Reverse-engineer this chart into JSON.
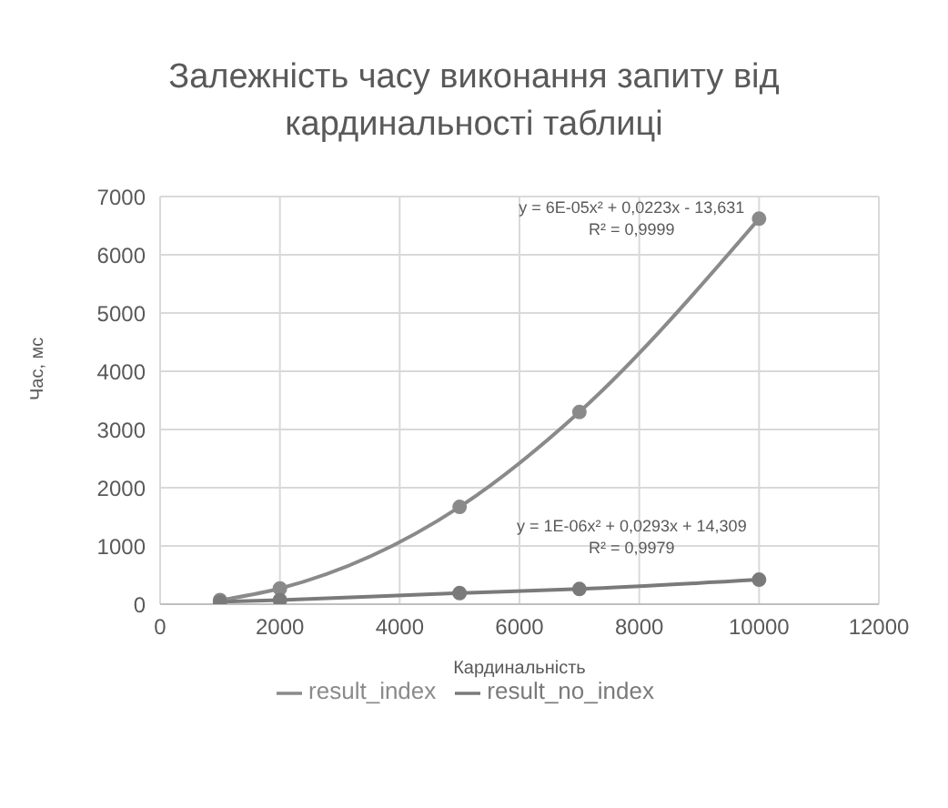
{
  "chart_data": {
    "type": "line",
    "title": "Залежність часу виконання запиту від кардинальності таблиці",
    "xlabel": "Кардинальність",
    "ylabel": "Час, мс",
    "x": [
      1000,
      2000,
      5000,
      7000,
      10000
    ],
    "series": [
      {
        "name": "result_index",
        "color": "#8a8a8a",
        "values": [
          70,
          270,
          1670,
          3300,
          6620
        ]
      },
      {
        "name": "result_no_index",
        "color": "#7a7a7a",
        "values": [
          40,
          70,
          190,
          260,
          420
        ]
      }
    ],
    "xlim": [
      0,
      12000
    ],
    "xticks": [
      0,
      2000,
      4000,
      6000,
      8000,
      10000,
      12000
    ],
    "ylim": [
      0,
      7000
    ],
    "yticks": [
      0,
      1000,
      2000,
      3000,
      4000,
      5000,
      6000,
      7000
    ],
    "grid": true,
    "legend": "bottom",
    "marker": "circle",
    "line_style": "solid",
    "annotations": [
      "y = 6E-05x² + 0,0223x - 13,631\nR² = 0,9999",
      "y = 1E-06x² + 0,0293x + 14,309\nR² = 0,9979"
    ]
  }
}
